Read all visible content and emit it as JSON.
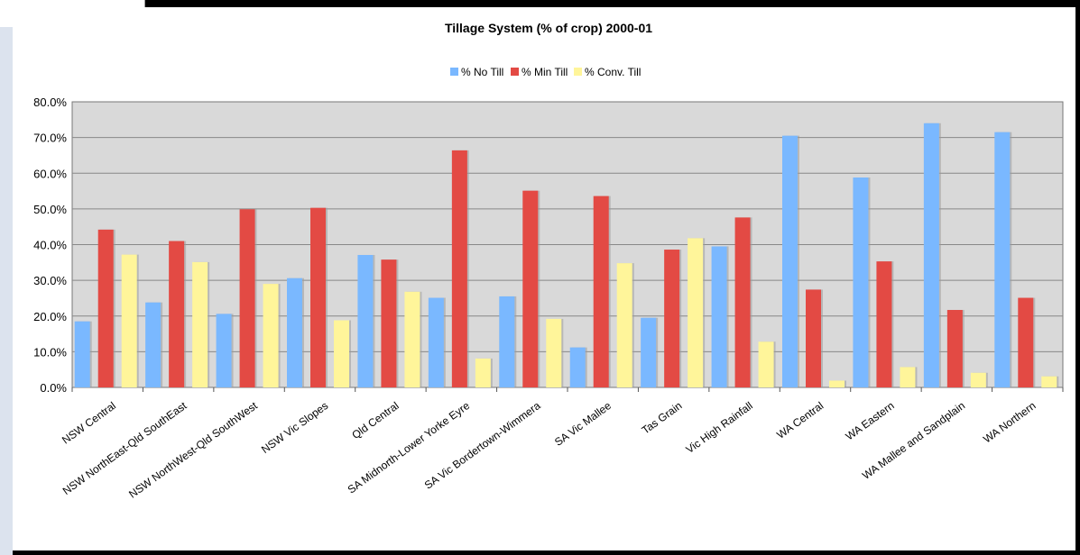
{
  "colors": {
    "no_till": "#7ab8ff",
    "min_till": "#e34a44",
    "conv_till": "#fff59a",
    "plot_bg": "#d9d9d9",
    "grid": "#888888"
  },
  "chart_data": {
    "type": "bar",
    "title": "Tillage System (% of crop) 2000-01",
    "xlabel": "",
    "ylabel": "",
    "ylim": [
      0,
      80
    ],
    "yticks": [
      "0.0%",
      "10.0%",
      "20.0%",
      "30.0%",
      "40.0%",
      "50.0%",
      "60.0%",
      "70.0%",
      "80.0%"
    ],
    "grid": true,
    "legend_position": "top",
    "categories": [
      "NSW Central",
      "NSW NorthEast-Qld SouthEast",
      "NSW NorthWest-Qld SouthWest",
      "NSW Vic Slopes",
      "Qld Central",
      "SA Midnorth-Lower Yorke Eyre",
      "SA Vic Bordertown-Wimmera",
      "SA Vic Mallee",
      "Tas Grain",
      "Vic High Rainfall",
      "WA Central",
      "WA Eastern",
      "WA Mallee and Sandplain",
      "WA Northern"
    ],
    "series": [
      {
        "name": "% No Till",
        "values": [
          18.5,
          23.8,
          20.6,
          30.6,
          37.1,
          25.1,
          25.5,
          11.2,
          19.5,
          39.5,
          70.5,
          58.8,
          74.0,
          71.5
        ]
      },
      {
        "name": "% Min Till",
        "values": [
          44.2,
          41.0,
          49.9,
          50.3,
          35.8,
          66.4,
          55.1,
          53.6,
          38.6,
          47.6,
          27.4,
          35.3,
          21.7,
          25.1
        ]
      },
      {
        "name": "% Conv. Till",
        "values": [
          37.2,
          35.1,
          29.0,
          18.8,
          26.8,
          8.1,
          19.2,
          34.8,
          41.8,
          12.8,
          1.9,
          5.7,
          4.1,
          3.1
        ]
      }
    ]
  }
}
